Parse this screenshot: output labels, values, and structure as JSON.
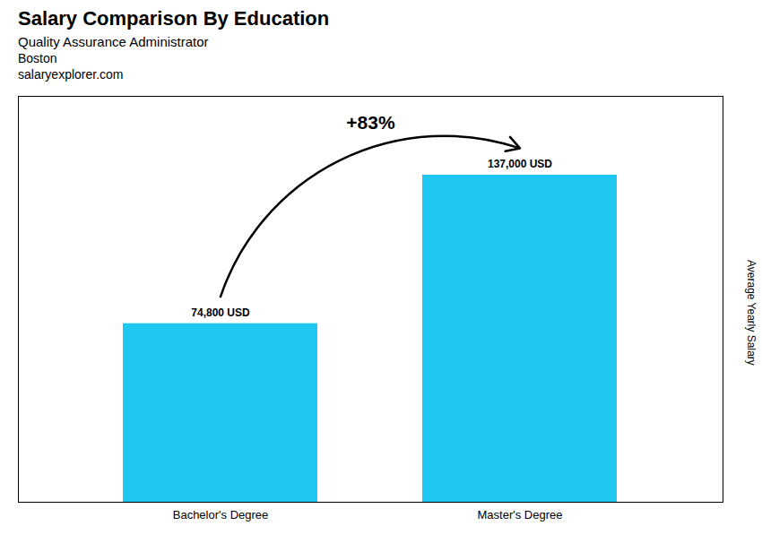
{
  "chart_data": {
    "type": "bar",
    "title": "Salary Comparison By Education",
    "subtitle": "Quality Assurance Administrator",
    "ylabel": "Average Yearly Salary",
    "categories": [
      "Bachelor's Degree",
      "Master's Degree"
    ],
    "values": [
      74800,
      137000
    ],
    "value_labels": [
      "74,800 USD",
      "137,000 USD"
    ],
    "data_labels": true,
    "color": "#1FC8F0",
    "ylim": [
      0,
      170000
    ],
    "tick_labels": "x",
    "annotations": [
      {
        "text": "Boston"
      },
      {
        "text": "salaryexplorer.com"
      },
      {
        "text": "+83%",
        "from": "Bachelor's Degree",
        "to": "Master's Degree"
      }
    ]
  }
}
